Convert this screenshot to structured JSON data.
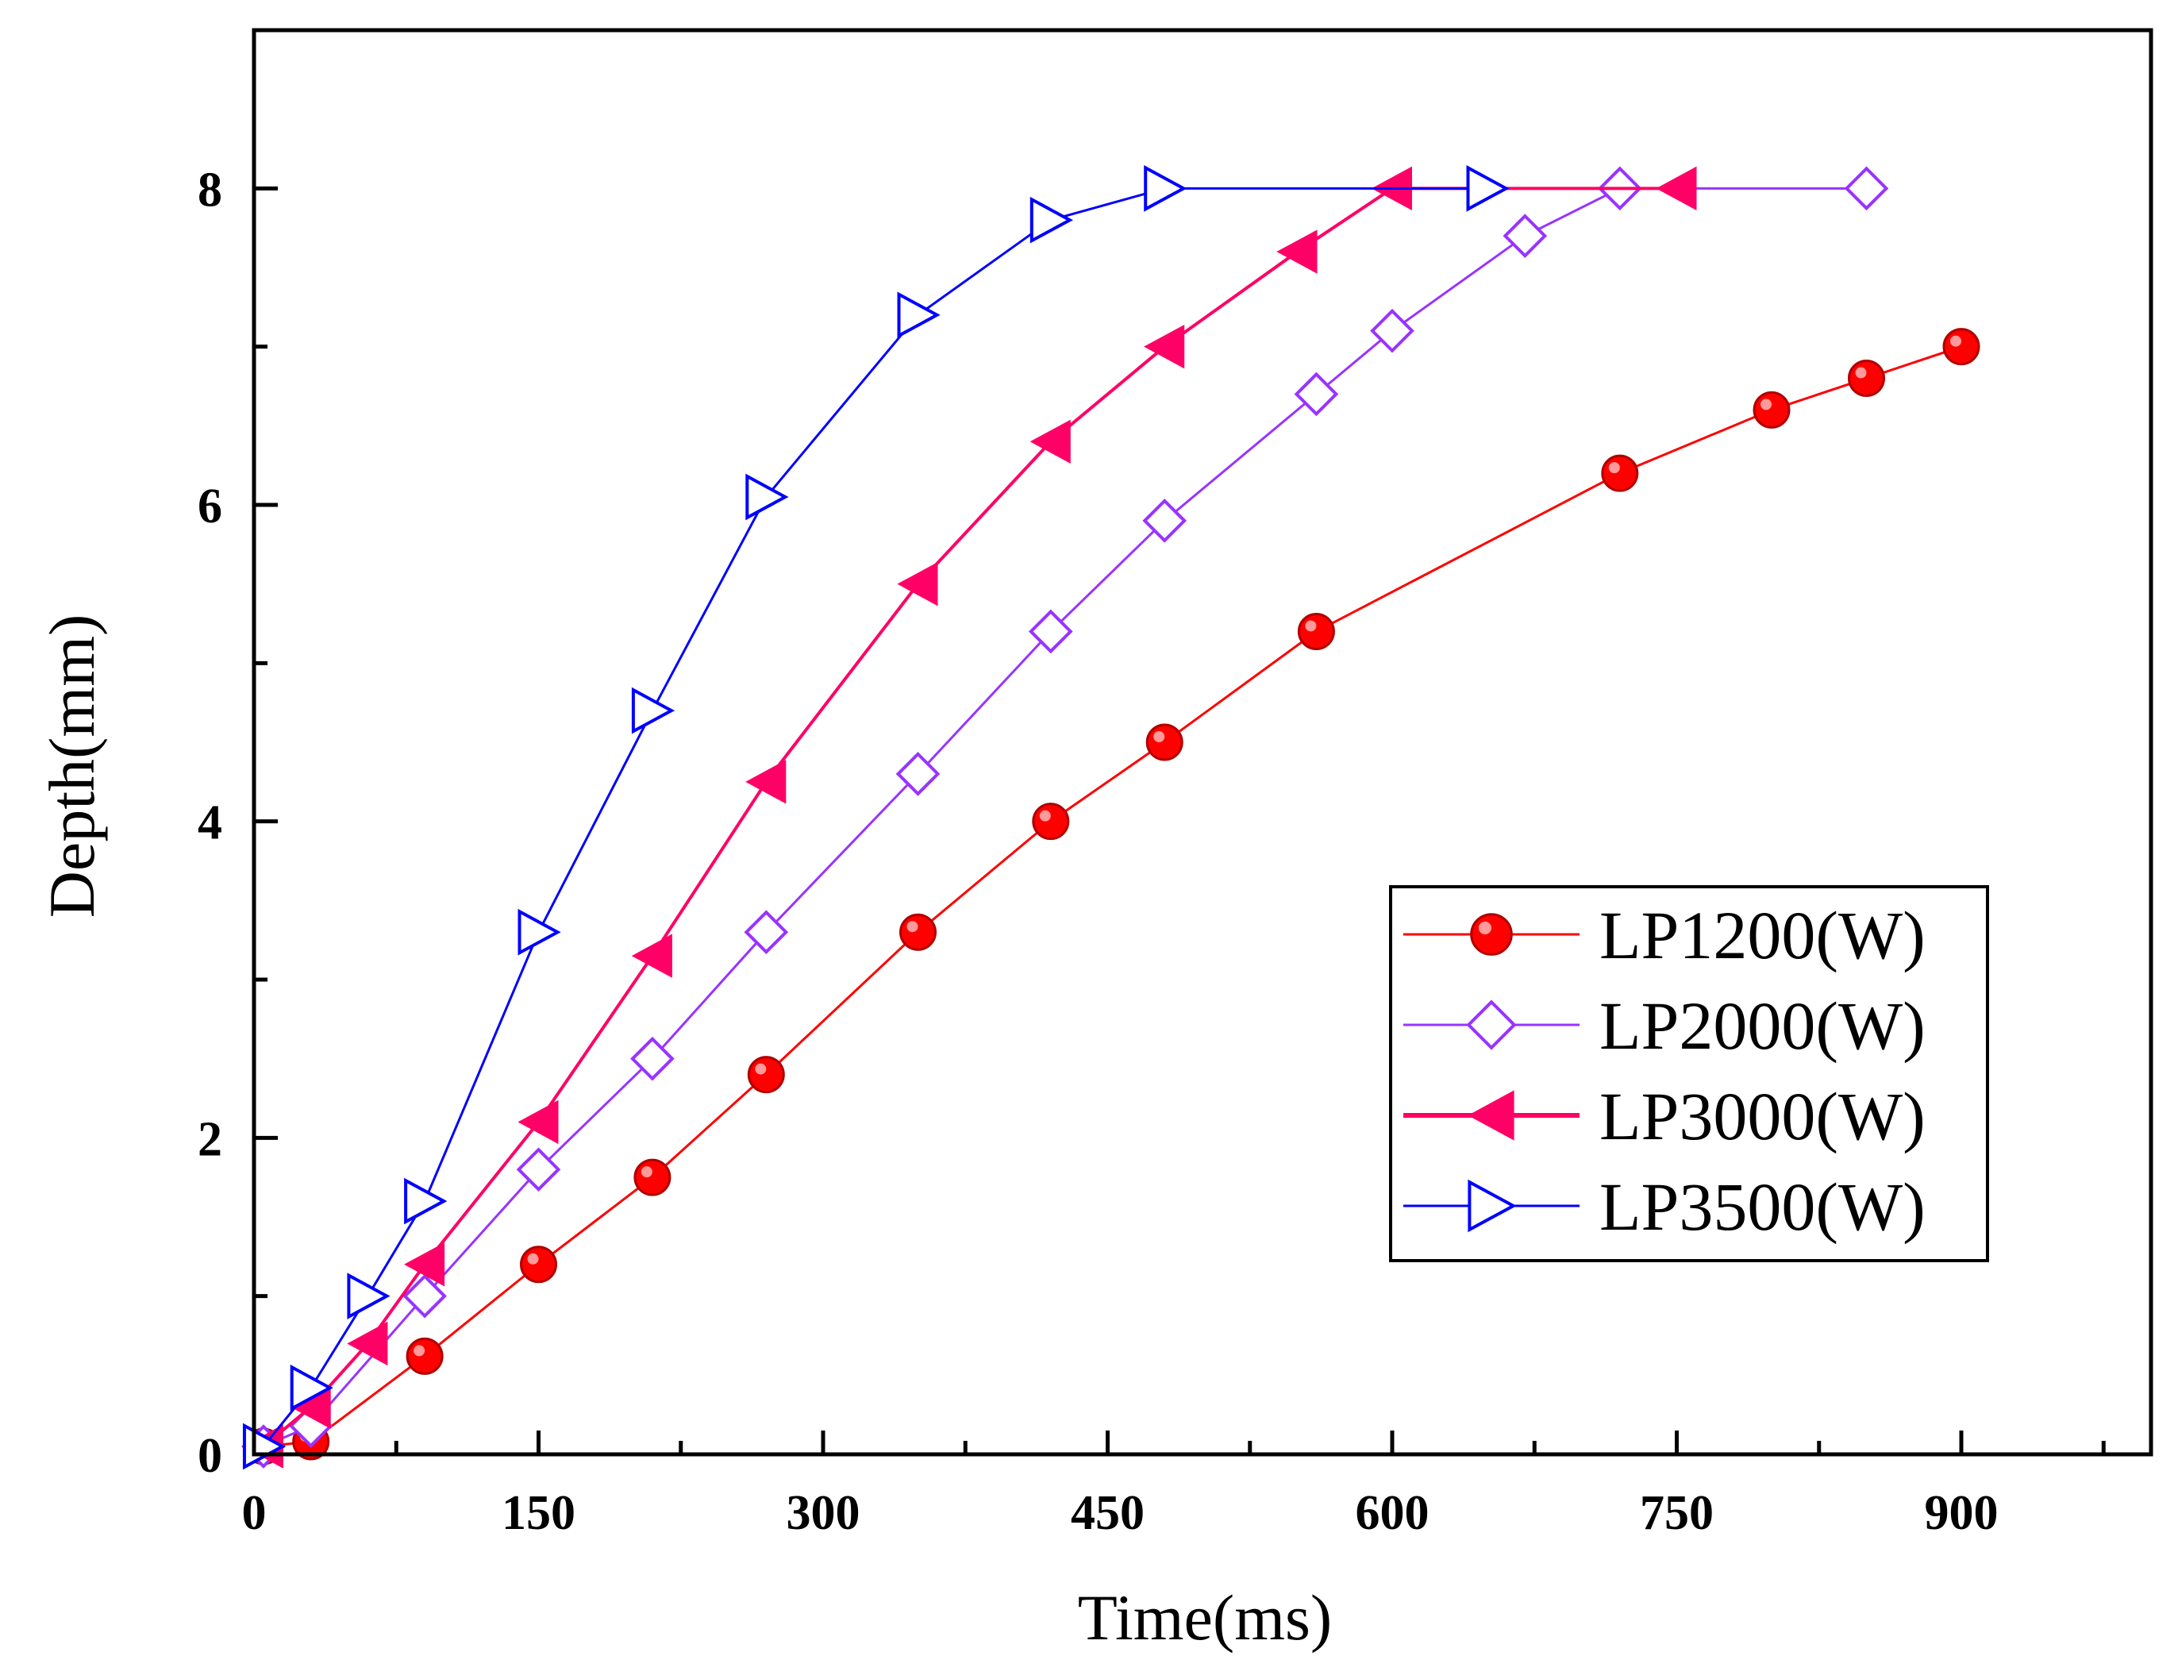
{
  "chart_data": {
    "type": "line",
    "title": "",
    "xlabel": "Time(ms)",
    "ylabel": "Depth(mm)",
    "xlim": [
      0,
      1000
    ],
    "ylim": [
      0,
      9
    ],
    "xticks": [
      0,
      150,
      300,
      450,
      600,
      750,
      900
    ],
    "yticks": [
      0,
      2,
      4,
      6,
      8
    ],
    "legend_position": "center-right",
    "series": [
      {
        "name": "LP1200(W)",
        "color": "#ff0000",
        "marker": "filled-circle",
        "x": [
          5,
          30,
          90,
          150,
          210,
          270,
          350,
          420,
          480,
          560,
          720,
          800,
          850,
          900
        ],
        "y": [
          0.05,
          0.08,
          0.62,
          1.2,
          1.75,
          2.4,
          3.3,
          4.0,
          4.5,
          5.2,
          6.2,
          6.6,
          6.8,
          7.0
        ]
      },
      {
        "name": "LP2000(W)",
        "color": "#9933ff",
        "marker": "open-diamond",
        "x": [
          5,
          30,
          90,
          150,
          210,
          270,
          350,
          420,
          480,
          560,
          600,
          670,
          720,
          850
        ],
        "y": [
          0.05,
          0.18,
          1.0,
          1.8,
          2.5,
          3.3,
          4.3,
          5.2,
          5.9,
          6.7,
          7.1,
          7.7,
          8.0,
          8.0
        ]
      },
      {
        "name": "LP3000(W)",
        "color": "#ff0066",
        "marker": "filled-triangle-left",
        "x": [
          5,
          30,
          60,
          90,
          150,
          210,
          270,
          350,
          420,
          480,
          550,
          600,
          750
        ],
        "y": [
          0.05,
          0.3,
          0.7,
          1.2,
          2.1,
          3.15,
          4.25,
          5.5,
          6.4,
          7.0,
          7.6,
          8.0,
          8.0
        ]
      },
      {
        "name": "LP3500(W)",
        "color": "#0000ff",
        "marker": "open-triangle-right",
        "x": [
          5,
          30,
          60,
          90,
          150,
          210,
          270,
          350,
          420,
          480,
          650
        ],
        "y": [
          0.05,
          0.42,
          1.0,
          1.6,
          3.3,
          4.7,
          6.05,
          7.2,
          7.8,
          8.0,
          8.0
        ]
      }
    ]
  }
}
